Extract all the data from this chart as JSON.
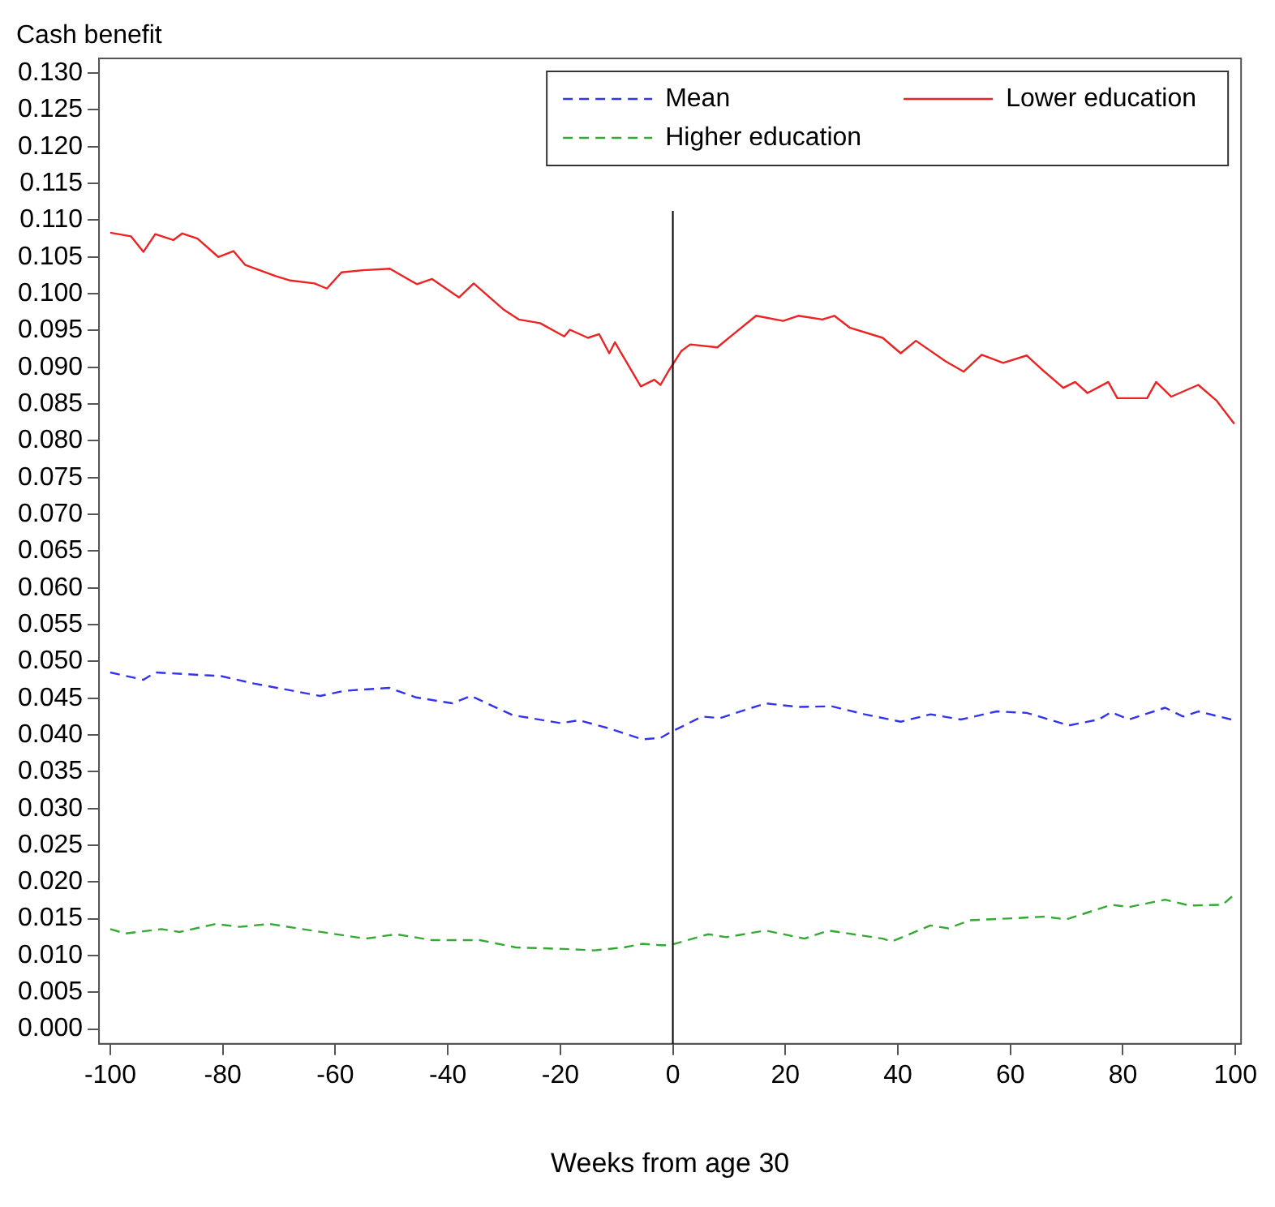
{
  "chart_data": {
    "type": "line",
    "xlabel": "Weeks from age 30",
    "ylabel": "Cash benefit",
    "xlim": [
      -102,
      101
    ],
    "ylim": [
      -0.002,
      0.132
    ],
    "xticks": [
      -100,
      -80,
      -60,
      -40,
      -20,
      0,
      20,
      40,
      60,
      80,
      100
    ],
    "yticks": [
      {
        "value": 0,
        "label": "0.000"
      },
      {
        "value": 0.005,
        "label": "0.005"
      },
      {
        "value": 0.01,
        "label": "0.010"
      },
      {
        "value": 0.015,
        "label": "0.015"
      },
      {
        "value": 0.02,
        "label": "0.020"
      },
      {
        "value": 0.025,
        "label": "0.025"
      },
      {
        "value": 0.03,
        "label": "0.030"
      },
      {
        "value": 0.035,
        "label": "0.035"
      },
      {
        "value": 0.04,
        "label": "0.040"
      },
      {
        "value": 0.045,
        "label": "0.045"
      },
      {
        "value": 0.05,
        "label": "0.050"
      },
      {
        "value": 0.055,
        "label": "0.055"
      },
      {
        "value": 0.06,
        "label": "0.060"
      },
      {
        "value": 0.065,
        "label": "0.065"
      },
      {
        "value": 0.07,
        "label": "0.070"
      },
      {
        "value": 0.075,
        "label": "0.075"
      },
      {
        "value": 0.08,
        "label": "0.080"
      },
      {
        "value": 0.085,
        "label": "0.085"
      },
      {
        "value": 0.09,
        "label": "0.090"
      },
      {
        "value": 0.095,
        "label": "0.095"
      },
      {
        "value": 0.1,
        "label": "0.100"
      },
      {
        "value": 0.105,
        "label": "0.105"
      },
      {
        "value": 0.11,
        "label": "0.110"
      },
      {
        "value": 0.115,
        "label": "0.115"
      },
      {
        "value": 0.12,
        "label": "0.120"
      },
      {
        "value": 0.125,
        "label": "0.125"
      },
      {
        "value": 0.13,
        "label": "0.130"
      }
    ],
    "grid": false,
    "legend": "top right",
    "marker": "none",
    "ref_lines": [
      {
        "axis": "x",
        "value": 0,
        "color": "#000000"
      }
    ],
    "series": [
      {
        "name": "Mean",
        "color": "#3333ee",
        "line_style": "dashed",
        "x": [
          -100,
          -94.1,
          -92,
          -80.3,
          -74.5,
          -62.7,
          -58.4,
          -50.4,
          -45.6,
          -39.2,
          -35.9,
          -28.5,
          -19.9,
          -16.7,
          -11.4,
          -5.4,
          -2.2,
          -0.6,
          5.2,
          8.4,
          16.5,
          22.3,
          28.2,
          34.1,
          40.5,
          45.8,
          51.2,
          57.6,
          62.9,
          70.4,
          75.7,
          77.9,
          81.1,
          87.5,
          90.7,
          93.4,
          99.8
        ],
        "values": [
          0.0485,
          0.0475,
          0.0485,
          0.048,
          0.047,
          0.0453,
          0.046,
          0.0464,
          0.0451,
          0.0443,
          0.0453,
          0.0427,
          0.0416,
          0.042,
          0.0409,
          0.0394,
          0.0396,
          0.0403,
          0.0425,
          0.0423,
          0.0443,
          0.0438,
          0.0439,
          0.0428,
          0.0418,
          0.0428,
          0.0421,
          0.0432,
          0.043,
          0.0413,
          0.0421,
          0.0431,
          0.0421,
          0.0437,
          0.0425,
          0.0432,
          0.042
        ]
      },
      {
        "name": "Lower education",
        "color": "#ee2222",
        "line_style": "solid",
        "x": [
          -100,
          -96.3,
          -94.1,
          -92,
          -88.8,
          -87.2,
          -84.5,
          -80.8,
          -78.1,
          -76,
          -70.6,
          -68,
          -63.7,
          -61.5,
          -58.9,
          -55.1,
          -50.3,
          -45.5,
          -42.8,
          -38,
          -35.4,
          -30,
          -27.4,
          -23.6,
          -19.3,
          -18.3,
          -15.1,
          -13.1,
          -11.3,
          -10.3,
          -5.7,
          -3.3,
          -2.2,
          -0.6,
          1.5,
          3.1,
          7.9,
          10.6,
          14.8,
          19.6,
          22.3,
          26.6,
          28.7,
          31.4,
          37.3,
          40.5,
          43.2,
          48.5,
          51.7,
          54.9,
          58.7,
          62.9,
          65.6,
          69.4,
          71.5,
          73.7,
          77.4,
          79,
          84.3,
          85.9,
          88.6,
          93.4,
          96.6,
          99.8
        ],
        "values": [
          0.1083,
          0.1078,
          0.1057,
          0.1081,
          0.1073,
          0.1082,
          0.1075,
          0.105,
          0.1058,
          0.1039,
          0.1024,
          0.1018,
          0.1014,
          0.1007,
          0.1029,
          0.1032,
          0.1034,
          0.1013,
          0.102,
          0.0995,
          0.1014,
          0.0978,
          0.0965,
          0.096,
          0.0942,
          0.0951,
          0.094,
          0.0945,
          0.0919,
          0.0934,
          0.0874,
          0.0883,
          0.0876,
          0.0897,
          0.0922,
          0.0931,
          0.0927,
          0.0944,
          0.097,
          0.0963,
          0.097,
          0.0965,
          0.097,
          0.0954,
          0.094,
          0.0919,
          0.0936,
          0.0908,
          0.0894,
          0.0917,
          0.0906,
          0.0916,
          0.0897,
          0.0872,
          0.088,
          0.0865,
          0.088,
          0.0858,
          0.0858,
          0.088,
          0.086,
          0.0876,
          0.0855,
          0.0823
        ]
      },
      {
        "name": "Higher education",
        "color": "#33aa33",
        "line_style": "dashed",
        "x": [
          -100,
          -97.3,
          -90.9,
          -87.7,
          -81.3,
          -77,
          -71.7,
          -64.2,
          -54.6,
          -49.2,
          -42.8,
          -34.3,
          -27.9,
          -19.3,
          -14,
          -8.7,
          -5.4,
          -2.2,
          -0.6,
          6.3,
          9.5,
          16.5,
          23.4,
          27.7,
          37.3,
          38.9,
          45.8,
          49,
          52.8,
          61.3,
          66.1,
          69.9,
          77.9,
          81.1,
          87.5,
          91.8,
          97.7,
          99.8
        ],
        "values": [
          0.0136,
          0.013,
          0.0136,
          0.0132,
          0.0143,
          0.0139,
          0.0143,
          0.0134,
          0.0123,
          0.0129,
          0.0121,
          0.0121,
          0.0111,
          0.0109,
          0.0107,
          0.0111,
          0.0116,
          0.0114,
          0.0114,
          0.0129,
          0.0125,
          0.0134,
          0.0123,
          0.0134,
          0.0123,
          0.0119,
          0.0141,
          0.0137,
          0.0148,
          0.0151,
          0.0153,
          0.0149,
          0.0169,
          0.0166,
          0.0176,
          0.0168,
          0.0169,
          0.0183
        ]
      }
    ]
  }
}
